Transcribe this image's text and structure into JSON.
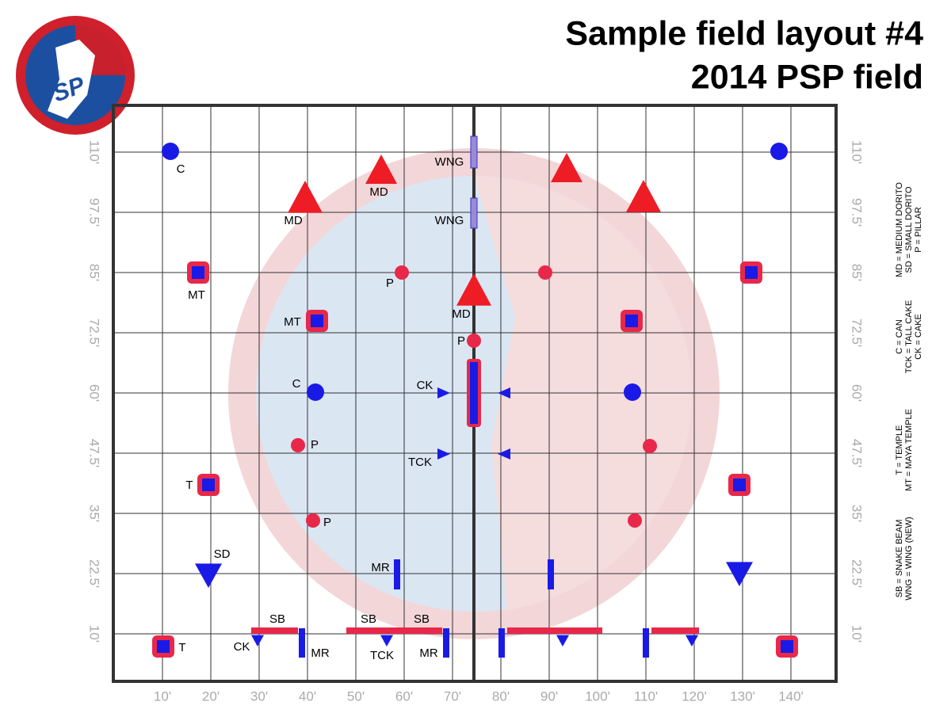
{
  "logo": {
    "text": "PSP"
  },
  "title": [
    "Sample field layout #4",
    "2014 PSP field"
  ],
  "x_axis_labels": [
    "10'",
    "20'",
    "30'",
    "40'",
    "50'",
    "60'",
    "70'",
    "80'",
    "90'",
    "100'",
    "110'",
    "120'",
    "130'",
    "140'"
  ],
  "y_axis_labels": [
    "110'",
    "97.5'",
    "85'",
    "72.5'",
    "60'",
    "47.5'",
    "35'",
    "22.5'",
    "10'"
  ],
  "bunker_labels": [
    "C",
    "MD",
    "MD",
    "WNG",
    "WNG",
    "MD",
    "P",
    "MT",
    "MT",
    "P",
    "C",
    "CK",
    "P",
    "TCK",
    "T",
    "P",
    "SD",
    "MR",
    "SB",
    "SB",
    "SB",
    "CK",
    "MR",
    "TCK",
    "MR",
    "T"
  ],
  "legend": [
    [
      "MD = MEDIUM DORITO",
      "SD = SMALL DORITO",
      "P = PILLAR"
    ],
    [
      "C = CAN",
      "TCK = TALL CAKE",
      "CK = CAKE"
    ],
    [
      "T = TEMPLE",
      "MT = MAYA TEMPLE"
    ],
    [
      "SB = SNAKE BEAM",
      "WNG = WING (NEW)"
    ]
  ]
}
